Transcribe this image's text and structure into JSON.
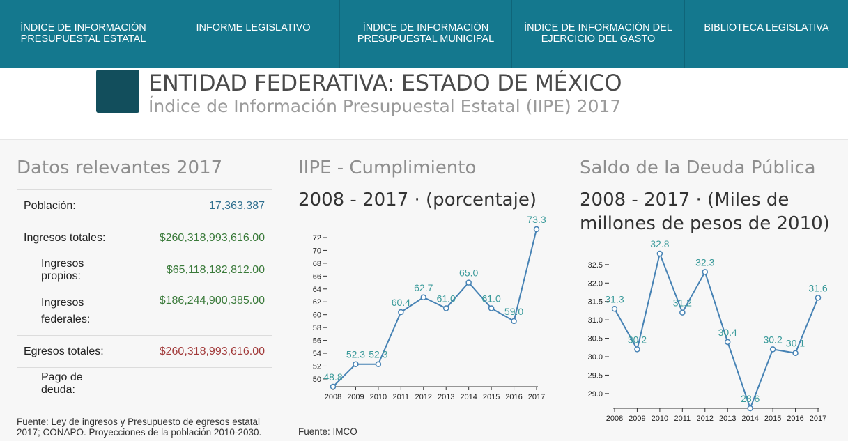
{
  "nav": [
    {
      "label_1": "ÍNDICE DE INFORMACIÓN",
      "label_2": "PRESUPUESTAL ESTATAL"
    },
    {
      "label_1": "INFORME LEGISLATIVO",
      "label_2": ""
    },
    {
      "label_1": "ÍNDICE DE INFORMACIÓN",
      "label_2": "PRESUPUESTAL MUNICIPAL"
    },
    {
      "label_1": "ÍNDICE DE INFORMACIÓN DEL",
      "label_2": "EJERCICIO DEL GASTO"
    },
    {
      "label_1": "BIBLIOTECA LEGISLATIVA",
      "label_2": ""
    }
  ],
  "header": {
    "title": "ENTIDAD FEDERATIVA: ESTADO DE MÉXICO",
    "subtitle": "Índice de Información Presupuestal Estatal (IIPE) 2017"
  },
  "datos": {
    "heading": "Datos relevantes 2017",
    "rows": [
      {
        "label": "Población:",
        "value": "17,363,387"
      },
      {
        "label": "Ingresos totales:",
        "value": "$260,318,993,616.00"
      },
      {
        "label": "Ingresos propios:",
        "value": "$65,118,182,812.00"
      },
      {
        "label": "Ingresos federales:",
        "value": "$186,244,900,385.00"
      },
      {
        "label": "Egresos totales:",
        "value": "$260,318,993,616.00"
      },
      {
        "label": "Pago de deuda:",
        "value": ""
      }
    ],
    "source": "Fuente: Ley de ingresos y Presupuesto de egresos estatal 2017; CONAPO. Proyecciones de la población 2010-2030."
  },
  "colors": {
    "nav_bg": "#14788e",
    "line": "#4682b4",
    "label": "#3a9a9a",
    "value_blue": "#2f6f8f",
    "value_green": "#3a7a3a",
    "value_red": "#a23b3b"
  },
  "chart_data": [
    {
      "type": "line",
      "heading": "IIPE - Cumplimiento",
      "title": "2008 - 2017 · (porcentaje)",
      "x": [
        "2008",
        "2009",
        "2010",
        "2011",
        "2012",
        "2013",
        "2014",
        "2015",
        "2016",
        "2017"
      ],
      "values": [
        48.8,
        52.3,
        52.3,
        60.4,
        62.7,
        61.0,
        65.0,
        61.0,
        59.0,
        73.3
      ],
      "data_labels": [
        "48.8",
        "52.3",
        "52.3",
        "60.4",
        "62.7",
        "61.0",
        "65.0",
        "61.0",
        "59.0",
        "73.3"
      ],
      "yticks": [
        "50",
        "52",
        "54",
        "56",
        "58",
        "60",
        "62",
        "64",
        "66",
        "68",
        "70",
        "72"
      ],
      "ylim": [
        48.8,
        73.3
      ],
      "source": "Fuente: IMCO"
    },
    {
      "type": "line",
      "heading": "Saldo de la Deuda Pública",
      "title": "2008 - 2017 · (Miles de millones de pesos de 2010)",
      "x": [
        "2008",
        "2009",
        "2010",
        "2011",
        "2012",
        "2013",
        "2014",
        "2015",
        "2016",
        "2017"
      ],
      "values": [
        31.3,
        30.2,
        32.8,
        31.2,
        32.3,
        30.4,
        28.6,
        30.2,
        30.1,
        31.6
      ],
      "data_labels": [
        "31.3",
        "30.2",
        "32.8",
        "31.2",
        "32.3",
        "30.4",
        "28.6",
        "30.2",
        "30.1",
        "31.6"
      ],
      "yticks": [
        "29.0",
        "29.5",
        "30.0",
        "30.5",
        "31.0",
        "31.5",
        "32.0",
        "32.5"
      ],
      "ylim": [
        28.6,
        32.8
      ]
    }
  ]
}
